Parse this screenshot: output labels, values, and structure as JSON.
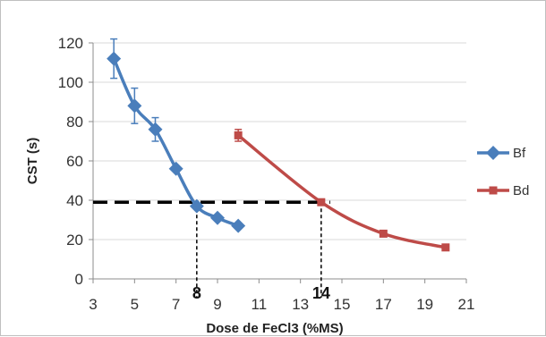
{
  "chart_data": {
    "type": "line",
    "xlabel": "Dose de FeCl3 (%MS)",
    "ylabel": "CST (s)",
    "xlim": [
      3,
      21
    ],
    "ylim": [
      0,
      120
    ],
    "x_ticks": [
      3,
      5,
      7,
      9,
      11,
      13,
      15,
      17,
      19,
      21
    ],
    "y_ticks": [
      0,
      20,
      40,
      60,
      80,
      100,
      120
    ],
    "grid": "horizontal",
    "legend": "right",
    "series": [
      {
        "name": "Bf",
        "color": "#4A7EBB",
        "marker": "diamond",
        "x": [
          4,
          5,
          6,
          7,
          8,
          9,
          10
        ],
        "y": [
          112,
          88,
          76,
          56,
          37,
          31,
          27
        ],
        "error": [
          10,
          9,
          6,
          0,
          0,
          0,
          0
        ]
      },
      {
        "name": "Bd",
        "color": "#BE4B48",
        "marker": "square",
        "x": [
          10,
          14,
          17,
          20
        ],
        "y": [
          73,
          39,
          23,
          16
        ],
        "error": [
          3,
          0,
          0,
          0
        ]
      }
    ],
    "annotations": {
      "threshold_y": 39,
      "markers": [
        {
          "x": 8,
          "label": "8"
        },
        {
          "x": 14,
          "label": "14"
        }
      ]
    }
  }
}
